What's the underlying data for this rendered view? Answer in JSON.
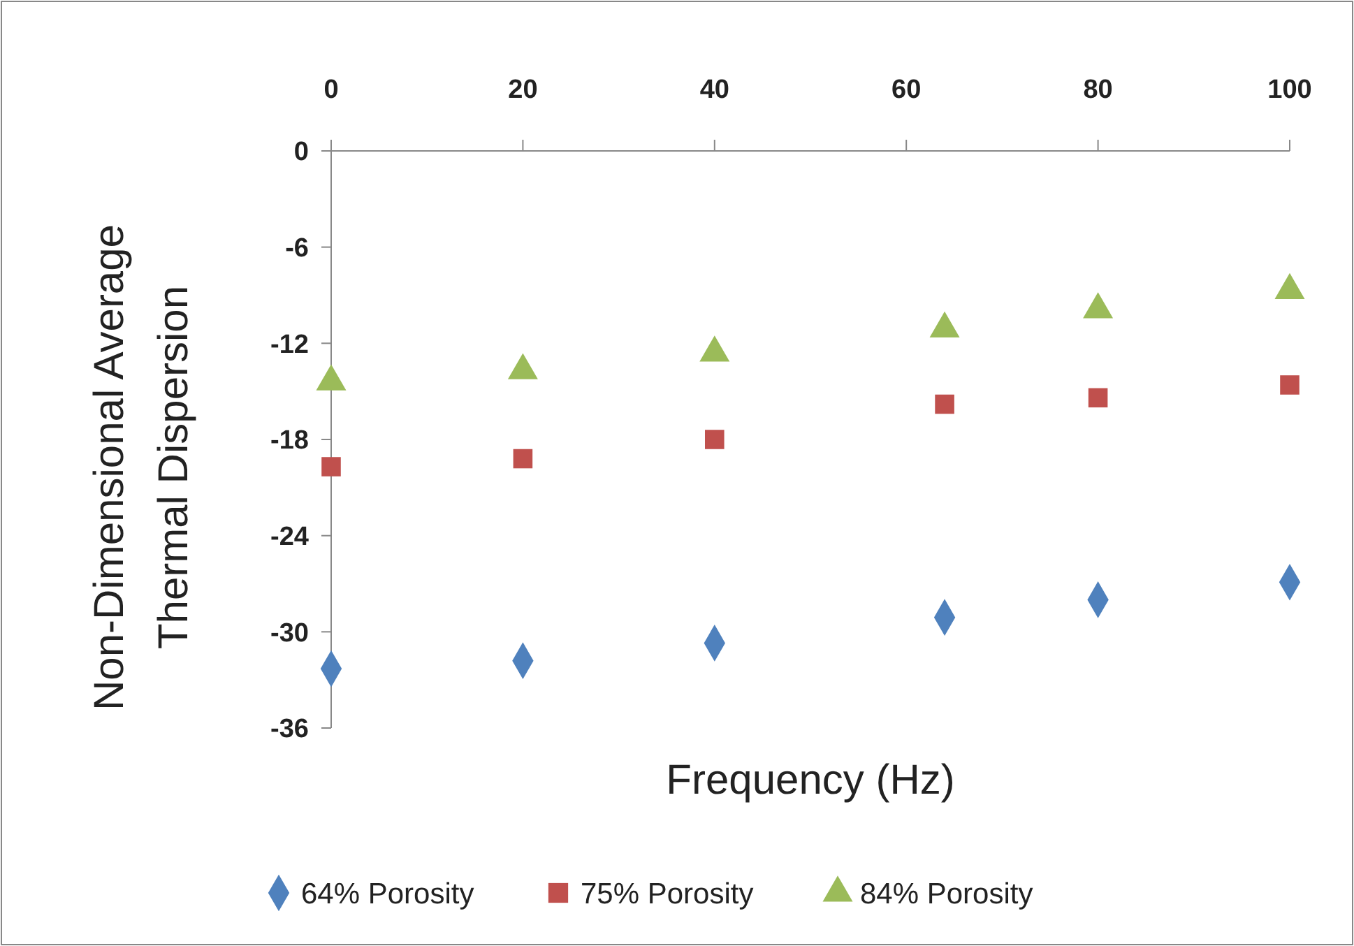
{
  "chart_data": {
    "type": "scatter",
    "xlabel": "Frequency (Hz)",
    "ylabel": "Non-Dimensional Average Thermal Dispersion",
    "x": [
      0,
      20,
      40,
      64,
      80,
      100
    ],
    "xlim": [
      0,
      100
    ],
    "xticks": [
      0,
      20,
      40,
      60,
      80,
      100
    ],
    "ylim": [
      -36,
      0
    ],
    "yticks": [
      -36,
      -30,
      -24,
      -18,
      -12,
      -6,
      0
    ],
    "grid": false,
    "legend": "bottom",
    "series": [
      {
        "name": "64% Porosity",
        "color": "#4f81bd",
        "marker": "diamond",
        "values": [
          -32.3,
          -31.8,
          -30.7,
          -29.1,
          -28.0,
          -26.9
        ]
      },
      {
        "name": "75% Porosity",
        "color": "#c0504d",
        "marker": "square",
        "values": [
          -19.7,
          -19.2,
          -18.0,
          -15.8,
          -15.4,
          -14.6
        ]
      },
      {
        "name": "84% Porosity",
        "color": "#9bbb59",
        "marker": "triangle",
        "values": [
          -14.4,
          -13.7,
          -12.6,
          -11.1,
          -9.9,
          -8.7
        ]
      }
    ]
  }
}
